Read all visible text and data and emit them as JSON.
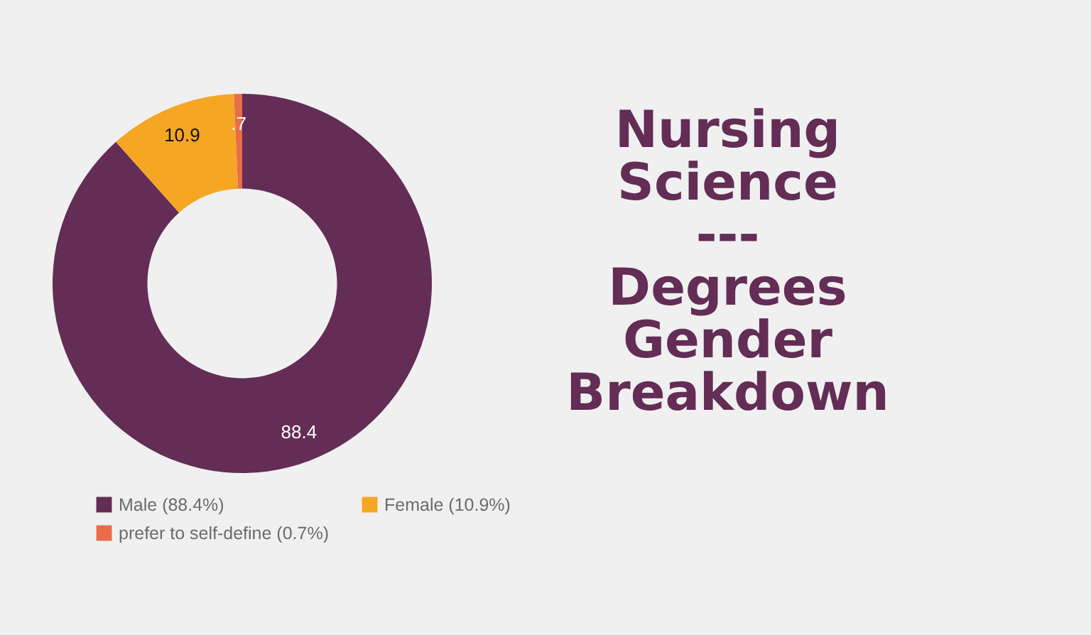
{
  "chart_data": {
    "type": "donut",
    "title": "Nursing\nScience\n---\nDegrees\nGender\nBreakdown",
    "categories": [
      "Male (88.4%)",
      "Female (10.9%)",
      "prefer to self-define (0.7%)"
    ],
    "values": [
      88.4,
      10.9,
      0.7
    ],
    "colors": [
      "#632d55",
      "#f5a623",
      "#ea6d4a"
    ],
    "value_labels": [
      "88.4",
      "10.9",
      ".7"
    ],
    "legend": "bottom"
  }
}
